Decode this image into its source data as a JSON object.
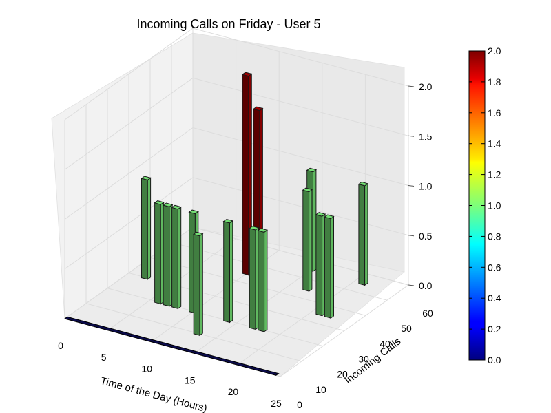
{
  "chart_data": {
    "type": "bar3d",
    "title": "Incoming Calls on Friday - User 5",
    "xlabel": "Time of the Day (Hours)",
    "ylabel": "Incoming Calls",
    "zlabel": "",
    "xlim": [
      0,
      25
    ],
    "ylim": [
      0,
      60
    ],
    "zlim": [
      0,
      2
    ],
    "x_ticks": [
      "0",
      "5",
      "10",
      "15",
      "20",
      "25"
    ],
    "y_ticks": [
      "0",
      "10",
      "20",
      "30",
      "40",
      "50",
      "60"
    ],
    "z_ticks": [
      "0.0",
      "0.5",
      "1.0",
      "1.5",
      "2.0"
    ],
    "colorbar": {
      "min": 0,
      "max": 2,
      "ticks": [
        "0.0",
        "0.2",
        "0.4",
        "0.6",
        "0.8",
        "1.0",
        "1.2",
        "1.4",
        "1.6",
        "1.8",
        "2.0"
      ],
      "colormap": "jet"
    },
    "grid": true,
    "bars": [
      {
        "x": 2,
        "y": 30,
        "z": 1
      },
      {
        "x": 6,
        "y": 20,
        "z": 1
      },
      {
        "x": 7,
        "y": 20,
        "z": 1
      },
      {
        "x": 8,
        "y": 20,
        "z": 1
      },
      {
        "x": 10,
        "y": 20,
        "z": 1
      },
      {
        "x": 10,
        "y": 45,
        "z": 2
      },
      {
        "x": 13,
        "y": 10,
        "z": 1
      },
      {
        "x": 14,
        "y": 20,
        "z": 1
      },
      {
        "x": 15,
        "y": 30,
        "z": 2
      },
      {
        "x": 15,
        "y": 55,
        "z": 1
      },
      {
        "x": 17,
        "y": 20,
        "z": 1
      },
      {
        "x": 17,
        "y": 45,
        "z": 1
      },
      {
        "x": 18,
        "y": 20,
        "z": 1
      },
      {
        "x": 21,
        "y": 35,
        "z": 1
      },
      {
        "x": 21,
        "y": 55,
        "z": 1
      },
      {
        "x": 22,
        "y": 35,
        "z": 1
      }
    ]
  }
}
